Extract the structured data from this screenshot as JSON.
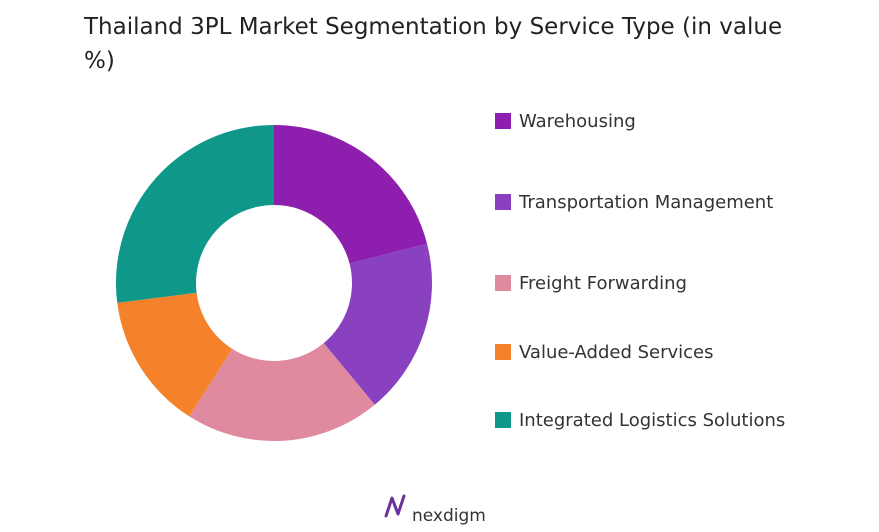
{
  "chart_data": {
    "type": "donut",
    "title": "Thailand 3PL Market Segmentation by Service Type (in value %)",
    "categories": [
      "Warehousing",
      "Transportation Management",
      "Freight Forwarding",
      "Value-Added Services",
      "Integrated Logistics Solutions"
    ],
    "values": [
      21,
      18,
      20,
      14,
      27
    ],
    "colors": [
      "#8e1fae",
      "#8941c0",
      "#e08aa0",
      "#f5822a",
      "#0f978a"
    ]
  },
  "logo": "nexdigm"
}
